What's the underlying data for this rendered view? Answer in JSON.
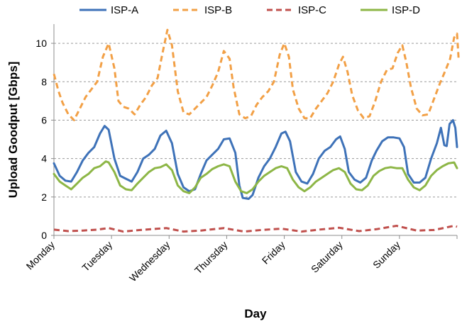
{
  "chart_data": {
    "type": "line",
    "title": "",
    "xlabel": "Day",
    "ylabel": "Upload Goodput [Gbps]",
    "ylim": [
      0,
      11
    ],
    "yticks": [
      0,
      2,
      4,
      6,
      8,
      10
    ],
    "xlim": [
      0,
      7
    ],
    "grid": "horizontal dashed",
    "legend_position": "top",
    "categories": [
      "Monday",
      "Tuesday",
      "Wednesday",
      "Thursday",
      "Friday",
      "Saturday",
      "Sunday"
    ],
    "series": [
      {
        "name": "ISP-A",
        "color": "#3e72b8",
        "style": "solid",
        "points": [
          [
            0,
            3.75
          ],
          [
            0.1,
            3.1
          ],
          [
            0.2,
            2.85
          ],
          [
            0.3,
            2.8
          ],
          [
            0.4,
            3.3
          ],
          [
            0.5,
            3.9
          ],
          [
            0.6,
            4.3
          ],
          [
            0.7,
            4.6
          ],
          [
            0.8,
            5.3
          ],
          [
            0.88,
            5.7
          ],
          [
            0.95,
            5.5
          ],
          [
            1.05,
            4.0
          ],
          [
            1.15,
            3.1
          ],
          [
            1.25,
            2.95
          ],
          [
            1.35,
            2.8
          ],
          [
            1.45,
            3.3
          ],
          [
            1.55,
            4.0
          ],
          [
            1.65,
            4.2
          ],
          [
            1.75,
            4.5
          ],
          [
            1.85,
            5.2
          ],
          [
            1.95,
            5.45
          ],
          [
            2.05,
            4.8
          ],
          [
            2.15,
            3.2
          ],
          [
            2.25,
            2.5
          ],
          [
            2.35,
            2.3
          ],
          [
            2.45,
            2.4
          ],
          [
            2.55,
            3.2
          ],
          [
            2.65,
            3.9
          ],
          [
            2.75,
            4.2
          ],
          [
            2.85,
            4.5
          ],
          [
            2.95,
            5.0
          ],
          [
            3.05,
            5.05
          ],
          [
            3.15,
            4.3
          ],
          [
            3.22,
            2.6
          ],
          [
            3.28,
            1.95
          ],
          [
            3.38,
            1.9
          ],
          [
            3.45,
            2.1
          ],
          [
            3.55,
            3.0
          ],
          [
            3.65,
            3.6
          ],
          [
            3.75,
            4.0
          ],
          [
            3.85,
            4.6
          ],
          [
            3.95,
            5.3
          ],
          [
            4.02,
            5.4
          ],
          [
            4.1,
            4.9
          ],
          [
            4.2,
            3.3
          ],
          [
            4.3,
            2.8
          ],
          [
            4.4,
            2.7
          ],
          [
            4.5,
            3.2
          ],
          [
            4.6,
            4.0
          ],
          [
            4.7,
            4.4
          ],
          [
            4.8,
            4.6
          ],
          [
            4.9,
            5.0
          ],
          [
            4.97,
            5.15
          ],
          [
            5.05,
            4.5
          ],
          [
            5.12,
            3.3
          ],
          [
            5.22,
            2.9
          ],
          [
            5.32,
            2.75
          ],
          [
            5.42,
            3.0
          ],
          [
            5.52,
            3.9
          ],
          [
            5.6,
            4.4
          ],
          [
            5.7,
            4.9
          ],
          [
            5.8,
            5.1
          ],
          [
            5.9,
            5.1
          ],
          [
            6.0,
            5.05
          ],
          [
            6.08,
            4.6
          ],
          [
            6.15,
            3.2
          ],
          [
            6.25,
            2.75
          ],
          [
            6.35,
            2.75
          ],
          [
            6.45,
            3.0
          ],
          [
            6.55,
            4.0
          ],
          [
            6.65,
            4.8
          ],
          [
            6.72,
            5.6
          ],
          [
            6.78,
            4.7
          ],
          [
            6.82,
            4.65
          ],
          [
            6.87,
            5.8
          ],
          [
            6.93,
            6.0
          ],
          [
            6.97,
            5.6
          ],
          [
            7.0,
            4.6
          ]
        ]
      },
      {
        "name": "ISP-B",
        "color": "#f2a046",
        "style": "dashed",
        "points": [
          [
            0,
            8.4
          ],
          [
            0.08,
            7.5
          ],
          [
            0.15,
            6.9
          ],
          [
            0.25,
            6.3
          ],
          [
            0.35,
            6.0
          ],
          [
            0.45,
            6.6
          ],
          [
            0.55,
            7.2
          ],
          [
            0.65,
            7.6
          ],
          [
            0.75,
            8.0
          ],
          [
            0.85,
            9.3
          ],
          [
            0.95,
            10.0
          ],
          [
            1.05,
            8.7
          ],
          [
            1.12,
            7.0
          ],
          [
            1.2,
            6.7
          ],
          [
            1.3,
            6.6
          ],
          [
            1.4,
            6.3
          ],
          [
            1.5,
            6.8
          ],
          [
            1.6,
            7.2
          ],
          [
            1.7,
            7.8
          ],
          [
            1.8,
            8.2
          ],
          [
            1.88,
            9.4
          ],
          [
            1.97,
            10.7
          ],
          [
            2.05,
            9.9
          ],
          [
            2.15,
            7.5
          ],
          [
            2.25,
            6.4
          ],
          [
            2.35,
            6.3
          ],
          [
            2.45,
            6.6
          ],
          [
            2.55,
            6.9
          ],
          [
            2.65,
            7.2
          ],
          [
            2.75,
            7.8
          ],
          [
            2.85,
            8.5
          ],
          [
            2.95,
            9.6
          ],
          [
            3.05,
            9.2
          ],
          [
            3.12,
            7.7
          ],
          [
            3.22,
            6.3
          ],
          [
            3.32,
            6.1
          ],
          [
            3.42,
            6.2
          ],
          [
            3.52,
            6.8
          ],
          [
            3.62,
            7.2
          ],
          [
            3.72,
            7.5
          ],
          [
            3.82,
            8.0
          ],
          [
            3.92,
            9.4
          ],
          [
            4.0,
            10.0
          ],
          [
            4.08,
            9.3
          ],
          [
            4.15,
            7.6
          ],
          [
            4.25,
            6.6
          ],
          [
            4.35,
            6.1
          ],
          [
            4.45,
            6.1
          ],
          [
            4.55,
            6.6
          ],
          [
            4.65,
            7.0
          ],
          [
            4.75,
            7.4
          ],
          [
            4.85,
            8.0
          ],
          [
            4.95,
            8.9
          ],
          [
            5.02,
            9.3
          ],
          [
            5.1,
            8.5
          ],
          [
            5.18,
            7.3
          ],
          [
            5.28,
            6.5
          ],
          [
            5.38,
            6.1
          ],
          [
            5.48,
            6.2
          ],
          [
            5.58,
            7.0
          ],
          [
            5.68,
            8.0
          ],
          [
            5.78,
            8.6
          ],
          [
            5.88,
            8.7
          ],
          [
            5.97,
            9.5
          ],
          [
            6.05,
            9.9
          ],
          [
            6.12,
            9.0
          ],
          [
            6.2,
            7.7
          ],
          [
            6.3,
            6.6
          ],
          [
            6.4,
            6.25
          ],
          [
            6.5,
            6.3
          ],
          [
            6.6,
            7.1
          ],
          [
            6.7,
            7.9
          ],
          [
            6.8,
            8.6
          ],
          [
            6.88,
            9.2
          ],
          [
            6.95,
            10.3
          ],
          [
            7.0,
            10.5
          ],
          [
            7.03,
            9.1
          ]
        ]
      },
      {
        "name": "ISP-C",
        "color": "#c0504d",
        "style": "dashed",
        "points": [
          [
            0,
            0.3
          ],
          [
            0.25,
            0.22
          ],
          [
            0.5,
            0.25
          ],
          [
            0.75,
            0.3
          ],
          [
            0.95,
            0.38
          ],
          [
            1.2,
            0.2
          ],
          [
            1.5,
            0.28
          ],
          [
            1.95,
            0.38
          ],
          [
            2.25,
            0.2
          ],
          [
            2.55,
            0.25
          ],
          [
            2.95,
            0.38
          ],
          [
            3.3,
            0.2
          ],
          [
            3.6,
            0.28
          ],
          [
            3.95,
            0.35
          ],
          [
            4.3,
            0.2
          ],
          [
            4.6,
            0.3
          ],
          [
            4.95,
            0.4
          ],
          [
            5.3,
            0.22
          ],
          [
            5.6,
            0.32
          ],
          [
            5.95,
            0.5
          ],
          [
            6.3,
            0.25
          ],
          [
            6.6,
            0.28
          ],
          [
            6.95,
            0.5
          ],
          [
            7.0,
            0.45
          ]
        ]
      },
      {
        "name": "ISP-D",
        "color": "#8db646",
        "style": "solid",
        "points": [
          [
            0,
            3.2
          ],
          [
            0.1,
            2.8
          ],
          [
            0.2,
            2.6
          ],
          [
            0.3,
            2.4
          ],
          [
            0.4,
            2.7
          ],
          [
            0.5,
            3.0
          ],
          [
            0.6,
            3.2
          ],
          [
            0.7,
            3.5
          ],
          [
            0.8,
            3.6
          ],
          [
            0.9,
            3.85
          ],
          [
            0.95,
            3.8
          ],
          [
            1.05,
            3.3
          ],
          [
            1.15,
            2.6
          ],
          [
            1.25,
            2.4
          ],
          [
            1.35,
            2.35
          ],
          [
            1.45,
            2.7
          ],
          [
            1.55,
            3.0
          ],
          [
            1.65,
            3.3
          ],
          [
            1.75,
            3.5
          ],
          [
            1.85,
            3.55
          ],
          [
            1.95,
            3.7
          ],
          [
            2.05,
            3.4
          ],
          [
            2.15,
            2.6
          ],
          [
            2.25,
            2.3
          ],
          [
            2.35,
            2.2
          ],
          [
            2.45,
            2.5
          ],
          [
            2.55,
            3.0
          ],
          [
            2.65,
            3.2
          ],
          [
            2.75,
            3.45
          ],
          [
            2.85,
            3.6
          ],
          [
            2.95,
            3.7
          ],
          [
            3.05,
            3.6
          ],
          [
            3.15,
            2.8
          ],
          [
            3.25,
            2.3
          ],
          [
            3.35,
            2.2
          ],
          [
            3.45,
            2.4
          ],
          [
            3.55,
            2.8
          ],
          [
            3.65,
            3.1
          ],
          [
            3.75,
            3.3
          ],
          [
            3.85,
            3.5
          ],
          [
            3.95,
            3.6
          ],
          [
            4.05,
            3.5
          ],
          [
            4.15,
            2.9
          ],
          [
            4.25,
            2.5
          ],
          [
            4.35,
            2.3
          ],
          [
            4.45,
            2.5
          ],
          [
            4.55,
            2.8
          ],
          [
            4.65,
            3.0
          ],
          [
            4.75,
            3.2
          ],
          [
            4.85,
            3.4
          ],
          [
            4.95,
            3.5
          ],
          [
            5.05,
            3.3
          ],
          [
            5.15,
            2.7
          ],
          [
            5.25,
            2.4
          ],
          [
            5.35,
            2.35
          ],
          [
            5.45,
            2.6
          ],
          [
            5.55,
            3.1
          ],
          [
            5.65,
            3.35
          ],
          [
            5.75,
            3.5
          ],
          [
            5.85,
            3.55
          ],
          [
            5.95,
            3.5
          ],
          [
            6.05,
            3.5
          ],
          [
            6.15,
            2.9
          ],
          [
            6.25,
            2.5
          ],
          [
            6.35,
            2.35
          ],
          [
            6.45,
            2.6
          ],
          [
            6.55,
            3.1
          ],
          [
            6.65,
            3.4
          ],
          [
            6.75,
            3.6
          ],
          [
            6.85,
            3.75
          ],
          [
            6.95,
            3.8
          ],
          [
            7.0,
            3.5
          ]
        ]
      }
    ]
  }
}
